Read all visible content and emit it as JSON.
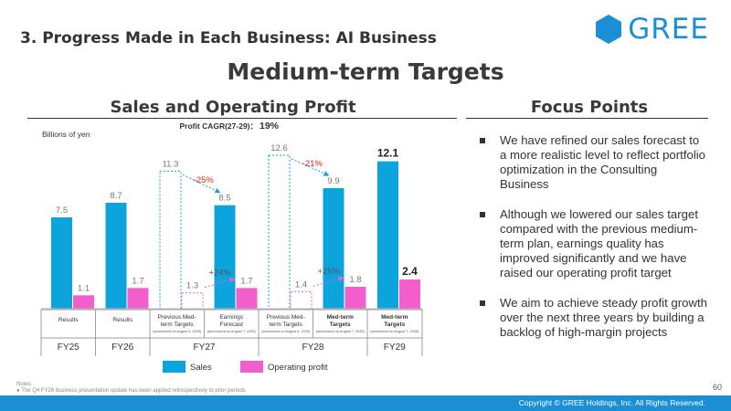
{
  "header": {
    "title": "3. Progress Made in Each Business: AI Business"
  },
  "logo": {
    "text": "GREE",
    "color": "#1a8fd6"
  },
  "main_title": "Medium-term Targets",
  "left_section": {
    "title": "Sales and Operating Profit"
  },
  "right_section": {
    "title": "Focus Points",
    "items": [
      "We have refined our sales forecast to a more realistic level to reflect portfolio optimization in the Consulting Business",
      "Although we lowered our sales target compared with the previous medium-term plan, earnings quality has improved significantly and we have raised our operating profit target",
      "We aim to achieve steady profit growth over the next three years by building a backlog of high-margin projects"
    ]
  },
  "chart_data": {
    "type": "bar",
    "cagr_label": "Profit CAGR(27-29)：",
    "cagr_value": "19%",
    "ylabel": "Billions of yen",
    "ylim": [
      0,
      13.5
    ],
    "colors": {
      "sales": "#0ca4dd",
      "profit": "#f25ecb"
    },
    "categories": [
      {
        "line1": "Results",
        "line2": "",
        "line3": "",
        "bold": false
      },
      {
        "line1": "Results",
        "line2": "",
        "line3": "",
        "bold": false
      },
      {
        "line1": "Previous Med-",
        "line2": "term Targets",
        "line3": "(announced on August 6, 2025)",
        "bold": false
      },
      {
        "line1": "Earnings",
        "line2": "Forecast",
        "line3": "(announced on August 7, 2026)",
        "bold": false
      },
      {
        "line1": "Previous Med-",
        "line2": "term Targets",
        "line3": "(announced on August 6, 2025)",
        "bold": false
      },
      {
        "line1": "Med-term",
        "line2": "Targets",
        "line3": "(announced on August 7, 2026)",
        "bold": true
      },
      {
        "line1": "Med-term",
        "line2": "Targets",
        "line3": "(announced on August 7, 2026)",
        "bold": true
      }
    ],
    "fiscal_years": [
      {
        "label": "FY25",
        "span": [
          0,
          0
        ]
      },
      {
        "label": "FY26",
        "span": [
          1,
          1
        ]
      },
      {
        "label": "FY27",
        "span": [
          2,
          3
        ]
      },
      {
        "label": "FY28",
        "span": [
          4,
          5
        ]
      },
      {
        "label": "FY29",
        "span": [
          6,
          6
        ]
      }
    ],
    "series": [
      {
        "name": "Sales",
        "values": [
          7.5,
          8.7,
          11.3,
          8.5,
          12.6,
          9.9,
          12.1
        ],
        "labels": [
          "7.5",
          "8.7",
          "11.3",
          "8.5",
          "12.6",
          "9.9",
          "12.1"
        ],
        "dashed": [
          false,
          false,
          true,
          false,
          true,
          false,
          false
        ]
      },
      {
        "name": "Operating profit",
        "values": [
          1.1,
          1.7,
          1.3,
          1.7,
          1.4,
          1.8,
          2.4
        ],
        "labels": [
          "1.1",
          "1.7",
          "1.3",
          "1.7",
          "1.4",
          "1.8",
          "2.4"
        ],
        "dashed": [
          false,
          false,
          true,
          false,
          true,
          false,
          false
        ]
      }
    ],
    "annotations": [
      {
        "text": "-25%",
        "series": 0,
        "from": 2,
        "to": 3,
        "color": "#e0201b"
      },
      {
        "text": "+24%",
        "series": 1,
        "from": 2,
        "to": 3,
        "color": "#555555"
      },
      {
        "text": "-21%",
        "series": 0,
        "from": 4,
        "to": 5,
        "color": "#e0201b"
      },
      {
        "text": "+25%",
        "series": 1,
        "from": 4,
        "to": 5,
        "color": "#555555"
      }
    ]
  },
  "notes": {
    "heading": "Notes:",
    "items": [
      "The Q4 FY26 business presentation update has been applied retrospectively to prior periods"
    ]
  },
  "page_number": "60",
  "footer": {
    "copyright": "Copyright © GREE Holdings, Inc. All Rights Reserved."
  }
}
